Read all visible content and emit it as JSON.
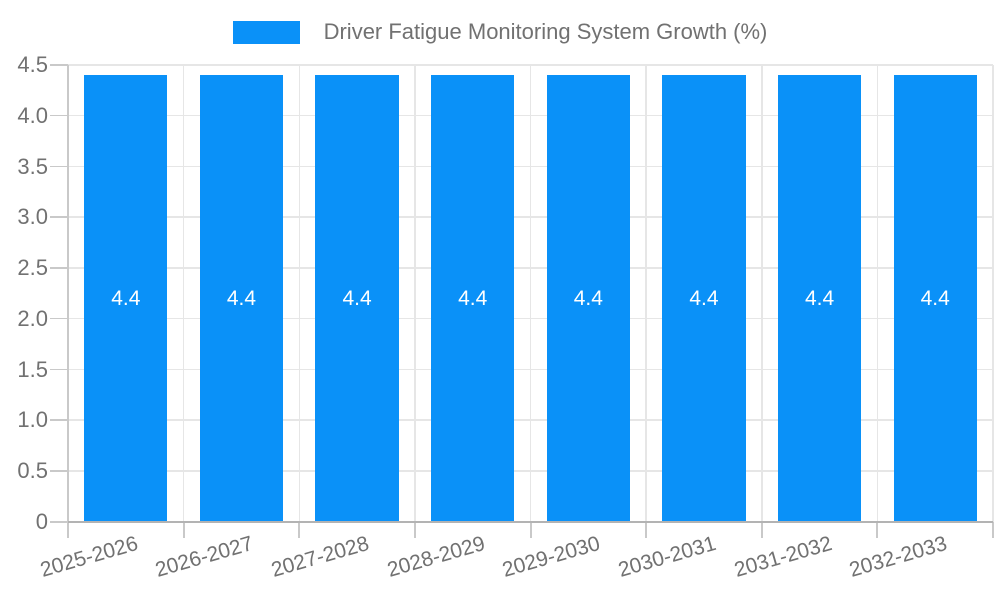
{
  "chart_data": {
    "type": "bar",
    "title": "Driver Fatigue Monitoring System Growth (%)",
    "categories": [
      "2025-2026",
      "2026-2027",
      "2027-2028",
      "2028-2029",
      "2029-2030",
      "2030-2031",
      "2031-2032",
      "2032-2033"
    ],
    "values": [
      4.4,
      4.4,
      4.4,
      4.4,
      4.4,
      4.4,
      4.4,
      4.4
    ],
    "value_labels": [
      "4.4",
      "4.4",
      "4.4",
      "4.4",
      "4.4",
      "4.4",
      "4.4",
      "4.4"
    ],
    "xlabel": "",
    "ylabel": "",
    "ylim": [
      0,
      4.5
    ],
    "yticks": [
      0,
      0.5,
      1,
      1.5,
      2,
      2.5,
      3,
      3.5,
      4,
      4.5
    ],
    "ytick_labels": [
      "0",
      "0.5",
      "1.0",
      "1.5",
      "2.0",
      "2.5",
      "3.0",
      "3.5",
      "4.0",
      "4.5"
    ],
    "grid": true,
    "legend_position": "top",
    "colors": {
      "bar": "#0a91f8",
      "text": "#717171",
      "grid": "#e6e6e6",
      "tick": "#c9c9c9",
      "axis": "#b3b3b3",
      "bar_label": "#ffffff",
      "background": "#ffffff"
    }
  }
}
